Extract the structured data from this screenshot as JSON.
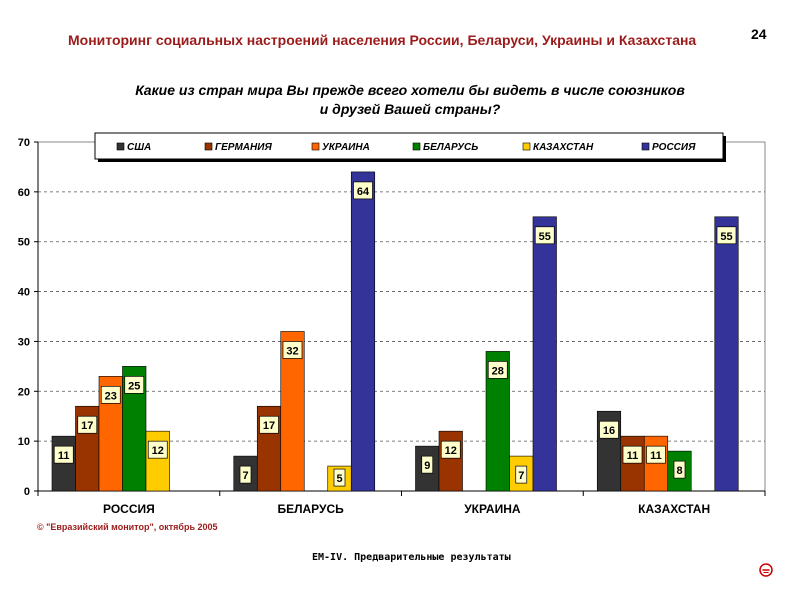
{
  "header": {
    "title": "Мониторинг социальных настроений населения России, Беларуси, Украины и Казахстана",
    "page_number": "24"
  },
  "question": {
    "line1": "Какие из стран мира Вы прежде всего хотели бы видеть в числе союзников",
    "line2": "и друзей Вашей страны?"
  },
  "copyright": "© \"Евразийский монитор\", октябрь 2005",
  "footer": "ЕМ-IV. Предварительные результаты",
  "colors": {
    "usa": "#333333",
    "germany": "#993300",
    "ukraine": "#ff6600",
    "belarus": "#008000",
    "kazakhstan": "#ffcc00",
    "russia": "#333399",
    "title": "#9b1b1b",
    "label_bg": "#ffffcc"
  },
  "chart_data": {
    "type": "bar",
    "title": "Какие из стран мира Вы прежде всего хотели бы видеть в числе союзников и друзей Вашей страны?",
    "xlabel": "",
    "ylabel": "",
    "ylim": [
      0,
      70
    ],
    "yticks": [
      "0",
      "10",
      "20",
      "30",
      "40",
      "50",
      "60",
      "70"
    ],
    "grid": true,
    "legend_position": "top",
    "categories": [
      "РОССИЯ",
      "БЕЛАРУСЬ",
      "УКРАИНА",
      "КАЗАХСТАН"
    ],
    "series": [
      {
        "name": "США",
        "color": "#333333",
        "values": [
          11,
          7,
          9,
          16
        ],
        "labels": [
          "11",
          "7",
          "9",
          "16"
        ]
      },
      {
        "name": "ГЕРМАНИЯ",
        "color": "#993300",
        "values": [
          17,
          17,
          12,
          11
        ],
        "labels": [
          "17",
          "17",
          "12",
          "11"
        ]
      },
      {
        "name": "УКРАИНА",
        "color": "#ff6600",
        "values": [
          23,
          32,
          null,
          11
        ],
        "labels": [
          "23",
          "32",
          "",
          "11"
        ]
      },
      {
        "name": "БЕЛАРУСЬ",
        "color": "#008000",
        "values": [
          25,
          null,
          28,
          8
        ],
        "labels": [
          "25",
          "",
          "28",
          "8"
        ]
      },
      {
        "name": "КАЗАХСТАН",
        "color": "#ffcc00",
        "values": [
          12,
          5,
          7,
          null
        ],
        "labels": [
          "12",
          "5",
          "7",
          ""
        ]
      },
      {
        "name": "РОССИЯ",
        "color": "#333399",
        "values": [
          null,
          64,
          55,
          55
        ],
        "labels": [
          "",
          "64",
          "55",
          "55"
        ]
      }
    ]
  }
}
